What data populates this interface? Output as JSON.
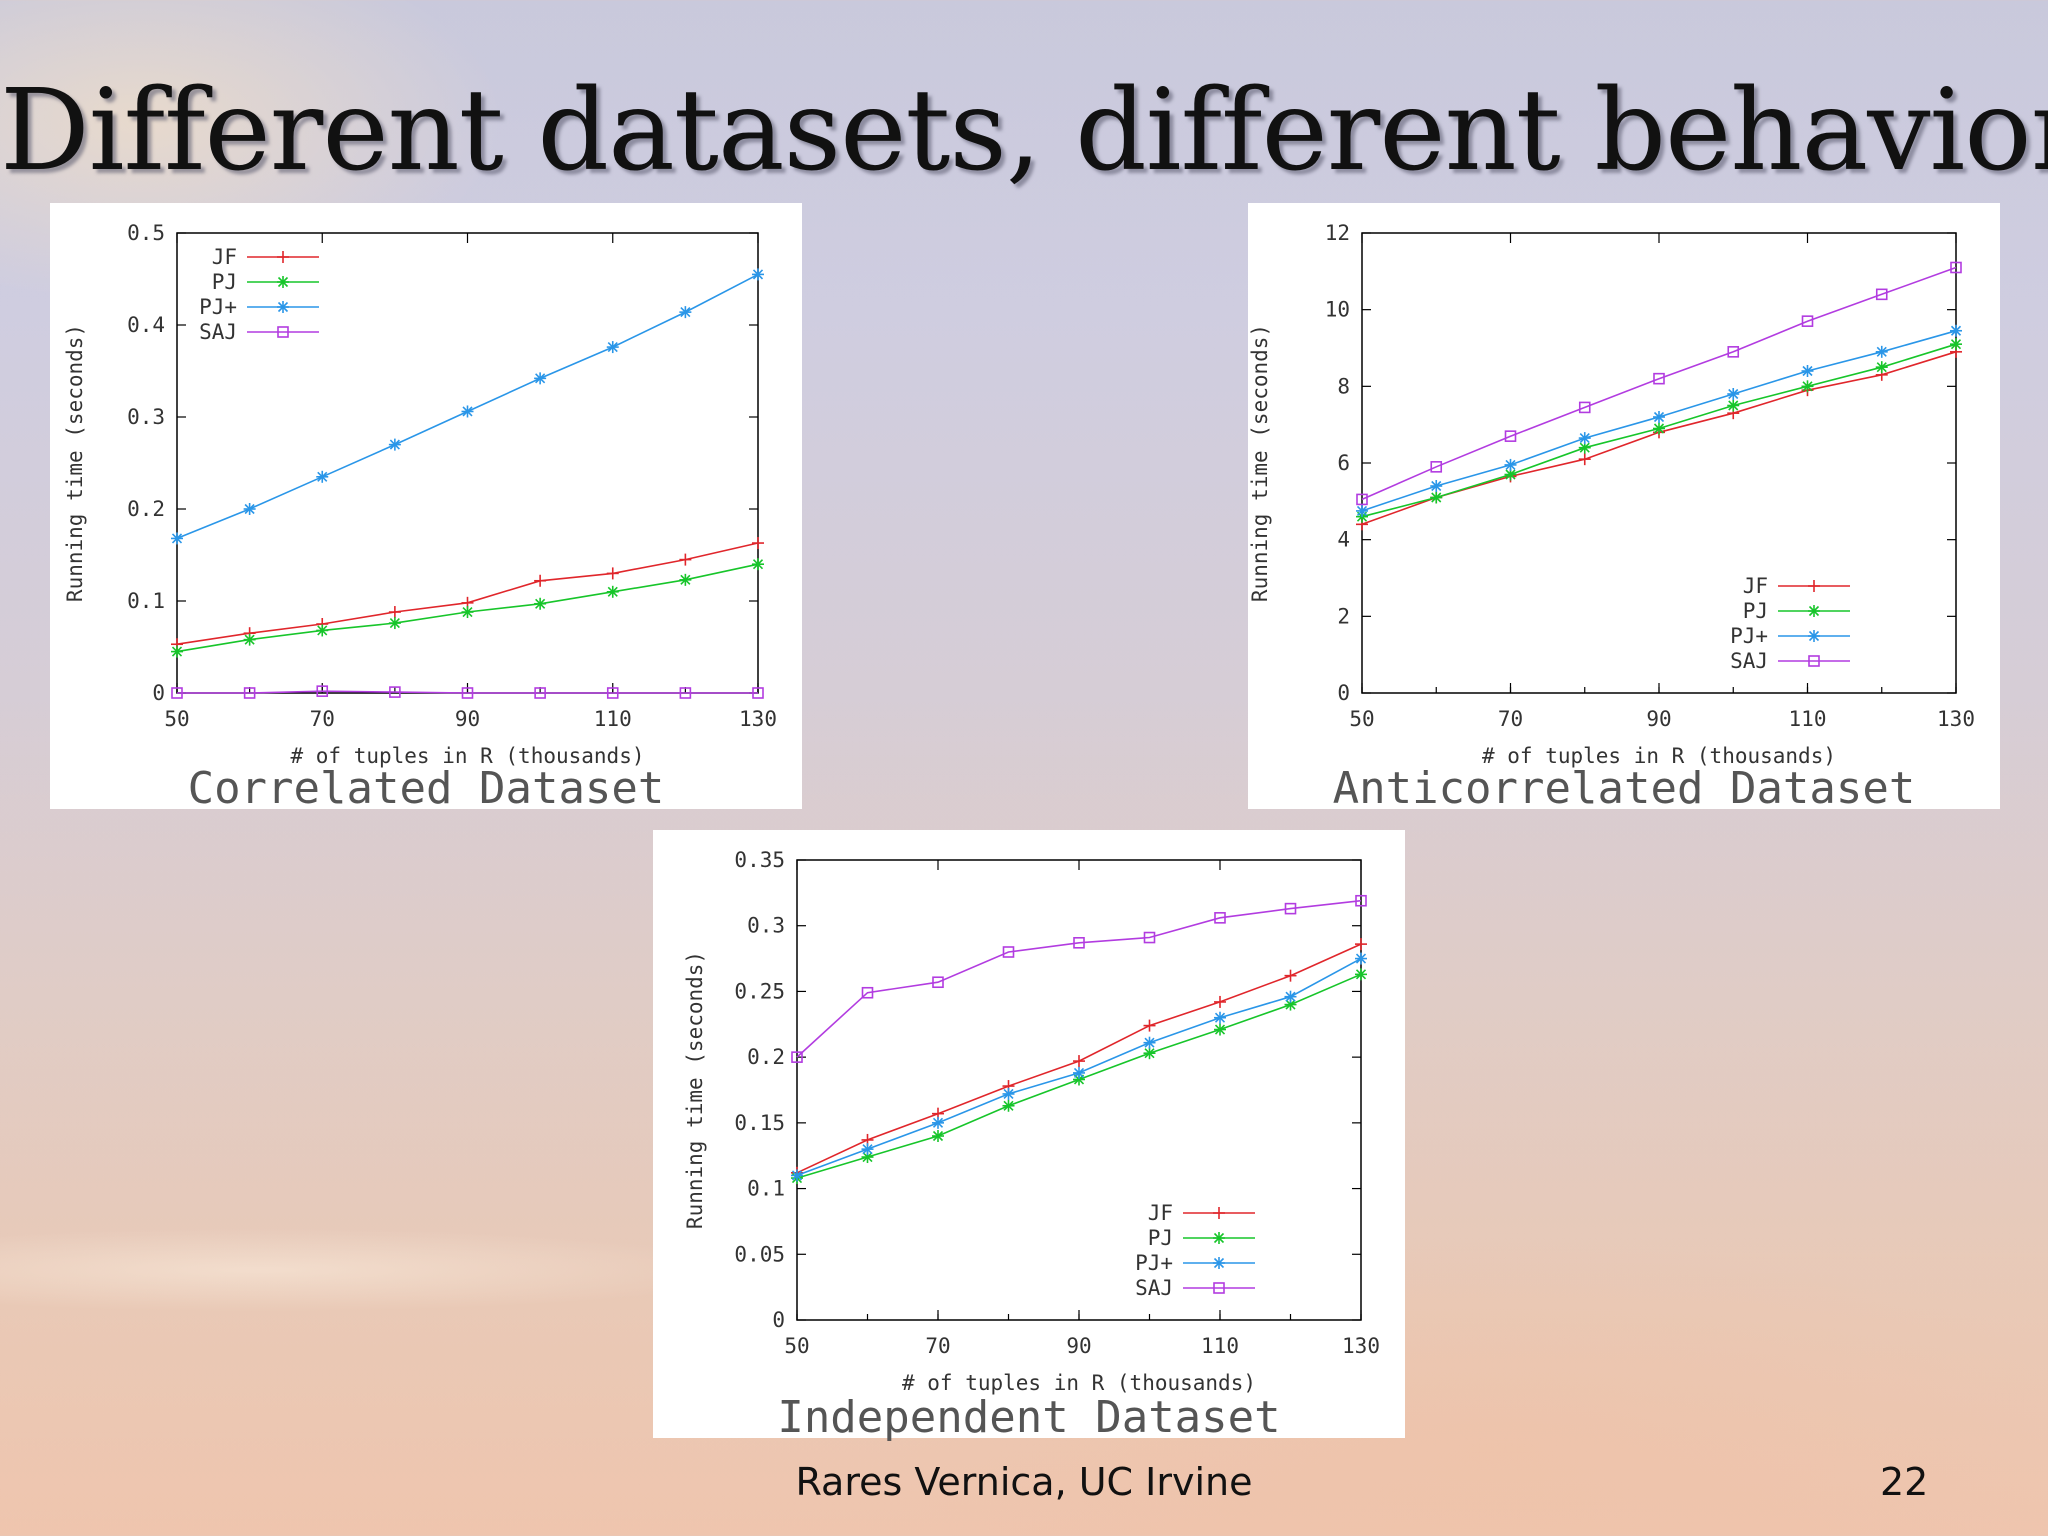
{
  "slide": {
    "title": "Different datasets, different behaviors",
    "author": "Rares Vernica, UC Irvine",
    "page_number": "22"
  },
  "series_colors": {
    "JF": "#e0262b",
    "PJ": "#17c52a",
    "PJ+": "#2a96e8",
    "SAJ": "#b23ce0"
  },
  "series_markers": {
    "JF": "plus",
    "PJ": "star",
    "PJ+": "star",
    "SAJ": "square"
  },
  "chart_data": [
    {
      "id": "correlated",
      "type": "line",
      "caption": "Correlated Dataset",
      "xlabel": "# of tuples in R (thousands)",
      "ylabel": "Running time (seconds)",
      "x": [
        50,
        60,
        70,
        80,
        90,
        100,
        110,
        120,
        130
      ],
      "xlim": [
        50,
        130
      ],
      "xticks": [
        "50",
        "70",
        "90",
        "110",
        "130"
      ],
      "xtick_values": [
        50,
        70,
        90,
        110,
        130
      ],
      "ylim": [
        0,
        0.5
      ],
      "yticks": [
        "0",
        "0.1",
        "0.2",
        "0.3",
        "0.4",
        "0.5"
      ],
      "ytick_values": [
        0,
        0.1,
        0.2,
        0.3,
        0.4,
        0.5
      ],
      "legend_position": "top-left",
      "series": [
        {
          "name": "JF",
          "values": [
            0.053,
            0.065,
            0.075,
            0.088,
            0.098,
            0.122,
            0.13,
            0.145,
            0.163
          ]
        },
        {
          "name": "PJ",
          "values": [
            0.045,
            0.058,
            0.068,
            0.076,
            0.088,
            0.097,
            0.11,
            0.123,
            0.14
          ]
        },
        {
          "name": "PJ+",
          "values": [
            0.168,
            0.2,
            0.235,
            0.27,
            0.306,
            0.342,
            0.376,
            0.414,
            0.455
          ]
        },
        {
          "name": "SAJ",
          "values": [
            0.0,
            0.0,
            0.002,
            0.001,
            0.0,
            0.0,
            0.0,
            0.0,
            0.0
          ]
        }
      ]
    },
    {
      "id": "anticorrelated",
      "type": "line",
      "caption": "Anticorrelated Dataset",
      "xlabel": "# of tuples in R (thousands)",
      "ylabel": "Running time (seconds)",
      "x": [
        50,
        60,
        70,
        80,
        90,
        100,
        110,
        120,
        130
      ],
      "xlim": [
        50,
        130
      ],
      "xticks": [
        "50",
        "70",
        "90",
        "110",
        "130"
      ],
      "xtick_values": [
        50,
        70,
        90,
        110,
        130
      ],
      "ylim": [
        0,
        12
      ],
      "yticks": [
        "0",
        "2",
        "4",
        "6",
        "8",
        "10",
        "12"
      ],
      "ytick_values": [
        0,
        2,
        4,
        6,
        8,
        10,
        12
      ],
      "legend_position": "bottom-right",
      "series": [
        {
          "name": "JF",
          "values": [
            4.4,
            5.1,
            5.65,
            6.1,
            6.8,
            7.3,
            7.9,
            8.3,
            8.9
          ]
        },
        {
          "name": "PJ",
          "values": [
            4.6,
            5.1,
            5.7,
            6.4,
            6.9,
            7.5,
            8.0,
            8.5,
            9.1
          ]
        },
        {
          "name": "PJ+",
          "values": [
            4.75,
            5.4,
            5.95,
            6.65,
            7.2,
            7.8,
            8.4,
            8.9,
            9.45
          ]
        },
        {
          "name": "SAJ",
          "values": [
            5.05,
            5.9,
            6.7,
            7.45,
            8.2,
            8.9,
            9.7,
            10.4,
            11.1
          ]
        }
      ]
    },
    {
      "id": "independent",
      "type": "line",
      "caption": "Independent Dataset",
      "xlabel": "# of tuples in R (thousands)",
      "ylabel": "Running time (seconds)",
      "x": [
        50,
        60,
        70,
        80,
        90,
        100,
        110,
        120,
        130
      ],
      "xlim": [
        50,
        130
      ],
      "xticks": [
        "50",
        "70",
        "90",
        "110",
        "130"
      ],
      "xtick_values": [
        50,
        70,
        90,
        110,
        130
      ],
      "ylim": [
        0,
        0.35
      ],
      "yticks": [
        "0",
        "0.05",
        "0.1",
        "0.15",
        "0.2",
        "0.25",
        "0.3",
        "0.35"
      ],
      "ytick_values": [
        0,
        0.05,
        0.1,
        0.15,
        0.2,
        0.25,
        0.3,
        0.35
      ],
      "legend_position": "bottom-right",
      "series": [
        {
          "name": "JF",
          "values": [
            0.112,
            0.137,
            0.157,
            0.178,
            0.197,
            0.224,
            0.242,
            0.262,
            0.286
          ]
        },
        {
          "name": "PJ",
          "values": [
            0.108,
            0.124,
            0.14,
            0.163,
            0.183,
            0.203,
            0.221,
            0.24,
            0.263
          ]
        },
        {
          "name": "PJ+",
          "values": [
            0.11,
            0.13,
            0.15,
            0.172,
            0.188,
            0.211,
            0.23,
            0.246,
            0.275
          ]
        },
        {
          "name": "SAJ",
          "values": [
            0.2,
            0.249,
            0.257,
            0.28,
            0.287,
            0.291,
            0.306,
            0.313,
            0.319
          ]
        }
      ]
    }
  ]
}
